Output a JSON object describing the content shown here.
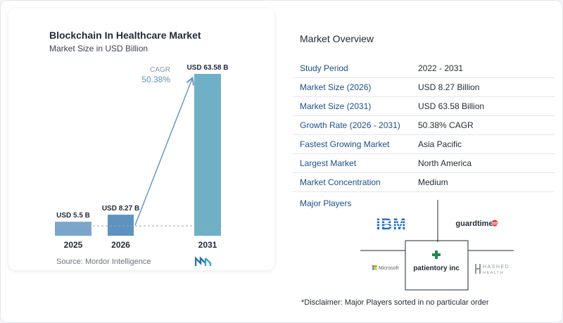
{
  "chart_data": {
    "type": "bar",
    "title": "Blockchain In Healthcare Market",
    "subtitle": "Market Size in USD Billion",
    "categories": [
      "2025",
      "2026",
      "2031"
    ],
    "values": [
      5.5,
      8.27,
      63.58
    ],
    "value_labels": [
      "USD 5.5 B",
      "USD 8.27 B",
      "USD 63.58 B"
    ],
    "annotation": {
      "label": "CAGR",
      "value": "50.38%"
    },
    "colors": [
      "#7aa6cb",
      "#5e93bf",
      "#6fb0c6"
    ],
    "grid": false,
    "legend": "none"
  },
  "source": "Source:  Mordor Intelligence",
  "overview": {
    "title": "Market Overview",
    "rows": [
      {
        "key": "Study Period",
        "value": "2022 - 2031"
      },
      {
        "key": "Market Size (2026)",
        "value": "USD 8.27 Billion"
      },
      {
        "key": "Market Size (2031)",
        "value": "USD 63.58 Billion"
      },
      {
        "key": "Growth Rate (2026 - 2031)",
        "value": "50.38% CAGR"
      },
      {
        "key": "Fastest Growing Market",
        "value": "Asia Pacific"
      },
      {
        "key": "Largest Market",
        "value": "North America"
      },
      {
        "key": "Market Concentration",
        "value": "Medium"
      }
    ]
  },
  "players": {
    "title": "Major Players",
    "logos": [
      "IBM",
      "guardtime",
      "Microsoft",
      "patientory inc",
      "HASHED",
      "HEALTH"
    ]
  },
  "disclaimer": "*Disclaimer: Major Players sorted in no particular order",
  "icons": [
    "mordor-intelligence-logo-icon"
  ]
}
